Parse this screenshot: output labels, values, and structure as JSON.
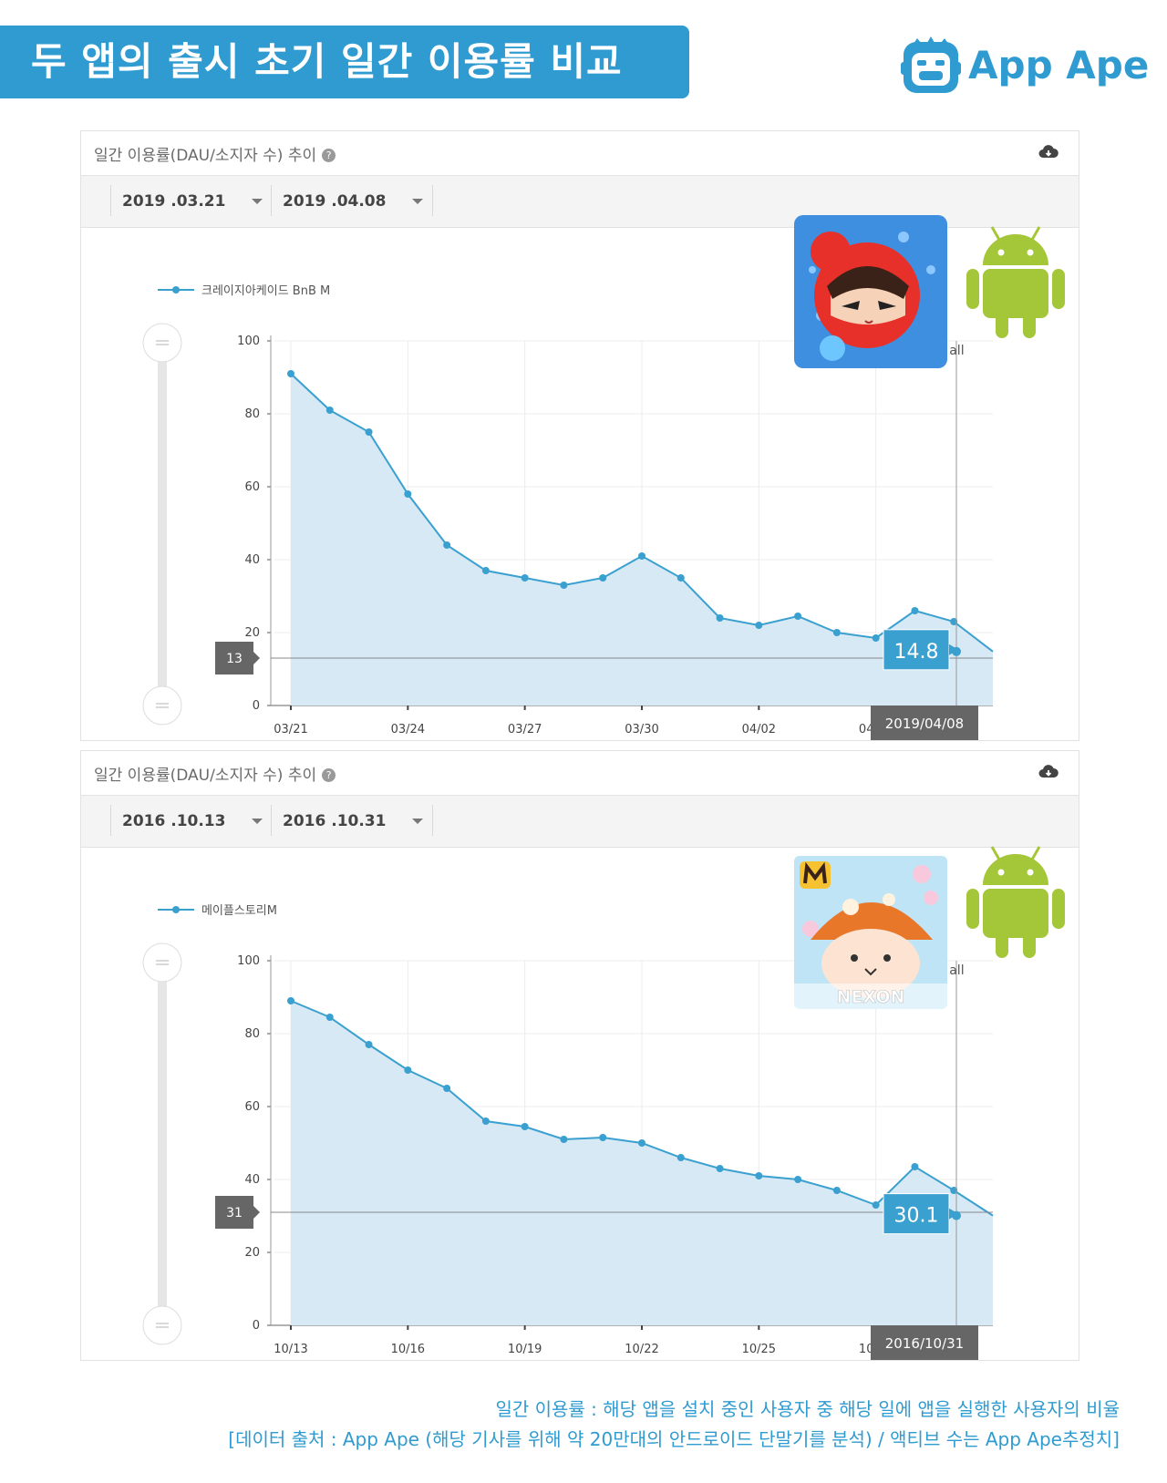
{
  "header": {
    "title": "두 앱의 출시 초기 일간 이용률 비교"
  },
  "brand": {
    "name": "App Ape",
    "logo_icon": "ape-face-icon",
    "color": "#2f9bd0"
  },
  "panels": [
    {
      "title": "일간 이용률(DAU/소지자 수) 추이",
      "help_icon": "question-icon",
      "download_icon": "cloud-download-icon",
      "date_from": "2019 .03.21",
      "date_to": "2019 .04.08",
      "app_icon": "crazy-arcade-app-icon",
      "platform_icon": "android-icon",
      "show_all": "Show all",
      "chart_data": {
        "type": "area",
        "series": [
          {
            "name": "크레이지아케이드 BnB M",
            "values": [
              91,
              81,
              75,
              58,
              44,
              37,
              35,
              33,
              35,
              41,
              35,
              24,
              22,
              24.5,
              20,
              18.5,
              26,
              23,
              14.8
            ]
          }
        ],
        "x": [
          "03/21",
          "03/22",
          "03/23",
          "03/24",
          "03/25",
          "03/26",
          "03/27",
          "03/28",
          "03/29",
          "03/30",
          "03/31",
          "04/01",
          "04/02",
          "04/03",
          "04/04",
          "04/05",
          "04/06",
          "04/07",
          "04/08"
        ],
        "xtick_labels": [
          "03/21",
          "03/24",
          "03/27",
          "03/30",
          "04/02",
          "04/05"
        ],
        "yticks": [
          "0",
          "20",
          "40",
          "60",
          "80",
          "100"
        ],
        "ylim": [
          0,
          100
        ],
        "grid": true,
        "legend": "top-left",
        "current_value": "14.8",
        "current_date": "2019/04/08",
        "ref_line_label": "13",
        "ref_line_value": 13,
        "color": "#3aa0d0"
      }
    },
    {
      "title": "일간 이용률(DAU/소지자 수) 추이",
      "help_icon": "question-icon",
      "download_icon": "cloud-download-icon",
      "date_from": "2016 .10.13",
      "date_to": "2016 .10.31",
      "app_icon": "maplestory-m-app-icon",
      "app_icon_text": "NEXON",
      "platform_icon": "android-icon",
      "show_all": "Show all",
      "chart_data": {
        "type": "area",
        "series": [
          {
            "name": "메이플스토리M",
            "values": [
              89,
              84.5,
              77,
              70,
              65,
              56,
              54.5,
              51,
              51.5,
              50,
              46,
              43,
              41,
              40,
              37,
              33,
              43.5,
              37,
              30.1
            ]
          }
        ],
        "x": [
          "10/13",
          "10/14",
          "10/15",
          "10/16",
          "10/17",
          "10/18",
          "10/19",
          "10/20",
          "10/21",
          "10/22",
          "10/23",
          "10/24",
          "10/25",
          "10/26",
          "10/27",
          "10/28",
          "10/29",
          "10/30",
          "10/31"
        ],
        "xtick_labels": [
          "10/13",
          "10/16",
          "10/19",
          "10/22",
          "10/25",
          "10/28"
        ],
        "yticks": [
          "0",
          "20",
          "40",
          "60",
          "80",
          "100"
        ],
        "ylim": [
          0,
          100
        ],
        "grid": true,
        "legend": "top-left",
        "current_value": "30.1",
        "current_date": "2016/10/31",
        "ref_line_label": "31",
        "ref_line_value": 31,
        "color": "#3aa0d0"
      }
    }
  ],
  "footer": {
    "line1": "일간 이용률 : 해당 앱을 설치 중인 사용자 중 해당 일에 앱을 실행한 사용자의 비율",
    "line2": "[데이터 출처 : App Ape (해당 기사를 위해 약 20만대의 안드로이드 단말기를 분석) / 액티브 수는 App Ape추정치]"
  }
}
